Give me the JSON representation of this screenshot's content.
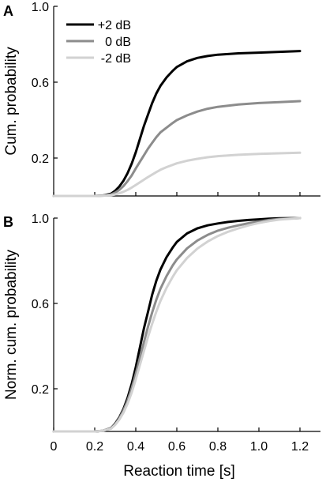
{
  "colors": {
    "plus2": "#000000",
    "zero": "#8c8c8c",
    "minus2": "#d2d2d2"
  },
  "chart_data": [
    {
      "type": "line",
      "panel": "A",
      "title": "",
      "xlabel": "",
      "ylabel": "Cum. probability",
      "xlim": [
        0,
        1.3
      ],
      "ylim": [
        0,
        1.0
      ],
      "yticks": [
        0.2,
        0.6,
        1.0
      ],
      "yticklabels": [
        "0.2",
        "0.6",
        "1.0"
      ],
      "xticks": [
        0,
        0.2,
        0.4,
        0.6,
        0.8,
        1.0,
        1.2
      ],
      "show_xticklabels": false,
      "grid": false,
      "legend_position": "top-left",
      "series": [
        {
          "name": "+2 dB",
          "color_key": "plus2",
          "x": [
            0,
            0.2,
            0.24,
            0.28,
            0.3,
            0.32,
            0.34,
            0.36,
            0.38,
            0.4,
            0.42,
            0.44,
            0.46,
            0.48,
            0.5,
            0.52,
            0.55,
            0.58,
            0.6,
            0.65,
            0.7,
            0.75,
            0.8,
            0.9,
            1.0,
            1.1,
            1.2
          ],
          "y": [
            0,
            0,
            0.002,
            0.012,
            0.028,
            0.05,
            0.08,
            0.12,
            0.17,
            0.23,
            0.3,
            0.37,
            0.43,
            0.49,
            0.54,
            0.58,
            0.625,
            0.66,
            0.68,
            0.71,
            0.728,
            0.738,
            0.745,
            0.752,
            0.756,
            0.76,
            0.764
          ]
        },
        {
          "name": "0 dB",
          "color_key": "zero",
          "x": [
            0,
            0.2,
            0.24,
            0.28,
            0.3,
            0.32,
            0.34,
            0.36,
            0.38,
            0.4,
            0.42,
            0.44,
            0.46,
            0.48,
            0.5,
            0.52,
            0.55,
            0.58,
            0.6,
            0.65,
            0.7,
            0.75,
            0.8,
            0.9,
            1.0,
            1.1,
            1.2
          ],
          "y": [
            0,
            0,
            0.002,
            0.008,
            0.018,
            0.032,
            0.052,
            0.078,
            0.108,
            0.145,
            0.18,
            0.215,
            0.25,
            0.28,
            0.31,
            0.335,
            0.36,
            0.385,
            0.4,
            0.425,
            0.445,
            0.46,
            0.47,
            0.482,
            0.49,
            0.495,
            0.5
          ]
        },
        {
          "name": "-2 dB",
          "color_key": "minus2",
          "x": [
            0,
            0.2,
            0.24,
            0.28,
            0.3,
            0.32,
            0.34,
            0.36,
            0.38,
            0.4,
            0.42,
            0.44,
            0.46,
            0.48,
            0.5,
            0.52,
            0.55,
            0.58,
            0.6,
            0.65,
            0.7,
            0.75,
            0.8,
            0.9,
            1.0,
            1.1,
            1.2
          ],
          "y": [
            0,
            0,
            0.001,
            0.004,
            0.008,
            0.014,
            0.022,
            0.032,
            0.044,
            0.058,
            0.072,
            0.086,
            0.1,
            0.113,
            0.126,
            0.138,
            0.152,
            0.164,
            0.172,
            0.186,
            0.196,
            0.204,
            0.21,
            0.217,
            0.222,
            0.225,
            0.228
          ]
        }
      ]
    },
    {
      "type": "line",
      "panel": "B",
      "title": "",
      "xlabel": "Reaction time [s]",
      "ylabel": "Norm. cum. probability",
      "xlim": [
        0,
        1.3
      ],
      "ylim": [
        0,
        1.0
      ],
      "yticks": [
        0.2,
        0.6,
        1.0
      ],
      "yticklabels": [
        "0.2",
        "0.6",
        "1.0"
      ],
      "xticks": [
        0,
        0.2,
        0.4,
        0.6,
        0.8,
        1.0,
        1.2
      ],
      "xticklabels": [
        "0",
        "0.2",
        "0.4",
        "0.6",
        "0.8",
        "1.0",
        "1.2"
      ],
      "show_xticklabels": true,
      "grid": false,
      "series": [
        {
          "name": "+2 dB",
          "color_key": "plus2",
          "x": [
            0,
            0.2,
            0.24,
            0.28,
            0.3,
            0.32,
            0.34,
            0.36,
            0.38,
            0.4,
            0.42,
            0.44,
            0.46,
            0.48,
            0.5,
            0.52,
            0.55,
            0.58,
            0.6,
            0.65,
            0.7,
            0.75,
            0.8,
            0.85,
            0.9,
            0.95,
            1.0,
            1.05,
            1.1,
            1.2
          ],
          "y": [
            0,
            0,
            0.003,
            0.016,
            0.037,
            0.066,
            0.105,
            0.157,
            0.222,
            0.301,
            0.393,
            0.484,
            0.562,
            0.641,
            0.706,
            0.758,
            0.817,
            0.862,
            0.888,
            0.928,
            0.952,
            0.966,
            0.975,
            0.982,
            0.987,
            0.991,
            0.994,
            0.997,
            0.999,
            1.0
          ]
        },
        {
          "name": "0 dB",
          "color_key": "zero",
          "x": [
            0,
            0.2,
            0.24,
            0.28,
            0.3,
            0.32,
            0.34,
            0.36,
            0.38,
            0.4,
            0.42,
            0.44,
            0.46,
            0.48,
            0.5,
            0.52,
            0.55,
            0.58,
            0.6,
            0.65,
            0.7,
            0.75,
            0.8,
            0.85,
            0.9,
            0.95,
            1.0,
            1.05,
            1.1,
            1.2
          ],
          "y": [
            0,
            0,
            0.003,
            0.014,
            0.034,
            0.062,
            0.098,
            0.144,
            0.202,
            0.27,
            0.345,
            0.42,
            0.492,
            0.558,
            0.617,
            0.668,
            0.728,
            0.778,
            0.806,
            0.858,
            0.895,
            0.921,
            0.941,
            0.955,
            0.966,
            0.976,
            0.984,
            0.991,
            0.996,
            1.0
          ]
        },
        {
          "name": "-2 dB",
          "color_key": "minus2",
          "x": [
            0,
            0.2,
            0.24,
            0.28,
            0.3,
            0.32,
            0.34,
            0.36,
            0.38,
            0.4,
            0.42,
            0.44,
            0.46,
            0.48,
            0.5,
            0.52,
            0.55,
            0.58,
            0.6,
            0.65,
            0.7,
            0.75,
            0.8,
            0.85,
            0.9,
            0.95,
            1.0,
            1.05,
            1.1,
            1.2
          ],
          "y": [
            0,
            0,
            0.003,
            0.014,
            0.031,
            0.056,
            0.088,
            0.13,
            0.182,
            0.244,
            0.311,
            0.378,
            0.444,
            0.505,
            0.561,
            0.611,
            0.673,
            0.725,
            0.755,
            0.813,
            0.857,
            0.89,
            0.916,
            0.936,
            0.952,
            0.966,
            0.977,
            0.986,
            0.993,
            1.0
          ]
        }
      ]
    }
  ]
}
